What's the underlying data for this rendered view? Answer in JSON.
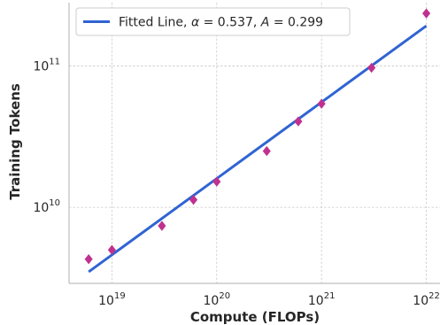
{
  "chart_data": {
    "type": "scatter",
    "xlabel": "Compute (FLOPs)",
    "ylabel": "Training Tokens",
    "x_scale": "log",
    "y_scale": "log",
    "xlim": [
      3.9e+18,
      1.35e+22
    ],
    "ylim": [
      2900000000.0,
      280000000000.0
    ],
    "x_ticks": [
      {
        "value": 1e+19,
        "base": "10",
        "exp": "19"
      },
      {
        "value": 1e+20,
        "base": "10",
        "exp": "20"
      },
      {
        "value": 1e+21,
        "base": "10",
        "exp": "21"
      },
      {
        "value": 1e+22,
        "base": "10",
        "exp": "22"
      }
    ],
    "y_ticks": [
      {
        "value": 10000000000.0,
        "base": "10",
        "exp": "10"
      },
      {
        "value": 100000000000.0,
        "base": "10",
        "exp": "11"
      }
    ],
    "grid": true,
    "legend_position": "top-left",
    "series": [
      {
        "name": "Fitted Line, α = 0.537, A = 0.299",
        "kind": "line",
        "color": "#2f64d2",
        "x": [
          6e+18,
          1e+22
        ],
        "y": [
          3500000000.0,
          192000000000.0
        ]
      },
      {
        "kind": "scatter",
        "marker": "diamond",
        "color": "#c0318f",
        "x": [
          6e+18,
          1e+19,
          3e+19,
          6e+19,
          1e+20,
          3e+20,
          6e+20,
          1e+21,
          3e+21,
          1e+22
        ],
        "y": [
          4300000000.0,
          5000000000.0,
          7400000000.0,
          11300000000.0,
          15200000000.0,
          25000000000.0,
          40500000000.0,
          54000000000.0,
          97000000000.0,
          235000000000.0
        ]
      }
    ],
    "legend": {
      "prefix": "Fitted Line, ",
      "alpha_symbol": "α",
      "alpha_value": " = 0.537, ",
      "a_symbol": "A",
      "a_value": " = 0.299"
    }
  }
}
